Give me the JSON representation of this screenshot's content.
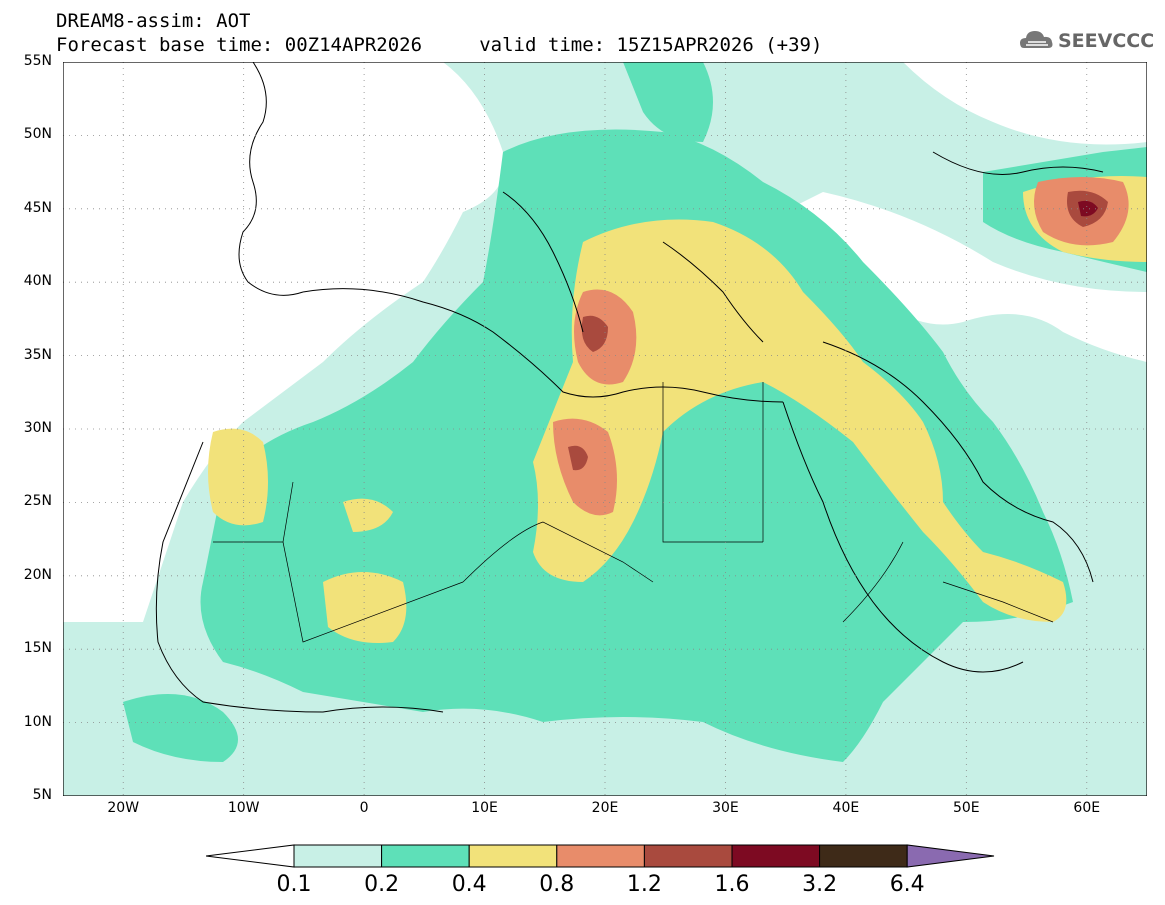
{
  "title": {
    "line1": "DREAM8-assim: AOT",
    "line2": "Forecast base time: 00Z14APR2026     valid time: 15Z15APR2026 (+39)"
  },
  "logo": {
    "text": "SEEVCCC",
    "icon": "cloud-icon"
  },
  "map": {
    "lon_range": [
      -25,
      65
    ],
    "lat_range": [
      5,
      55
    ],
    "lat_labels": [
      "55N",
      "50N",
      "45N",
      "40N",
      "35N",
      "30N",
      "25N",
      "20N",
      "15N",
      "10N",
      "5N"
    ],
    "lon_labels": [
      "20W",
      "10W",
      "0",
      "10E",
      "20E",
      "30E",
      "40E",
      "50E",
      "60E"
    ],
    "gridlines": "dotted"
  },
  "legend": {
    "labels": [
      "0.1",
      "0.2",
      "0.4",
      "0.8",
      "1.2",
      "1.6",
      "3.2",
      "6.4"
    ],
    "colors": [
      "#ffffff",
      "#c8f0e6",
      "#5ee0b8",
      "#f2e27a",
      "#e88c6a",
      "#a94a3e",
      "#7d0a22",
      "#3e2a18",
      "#8a6ab0"
    ]
  }
}
